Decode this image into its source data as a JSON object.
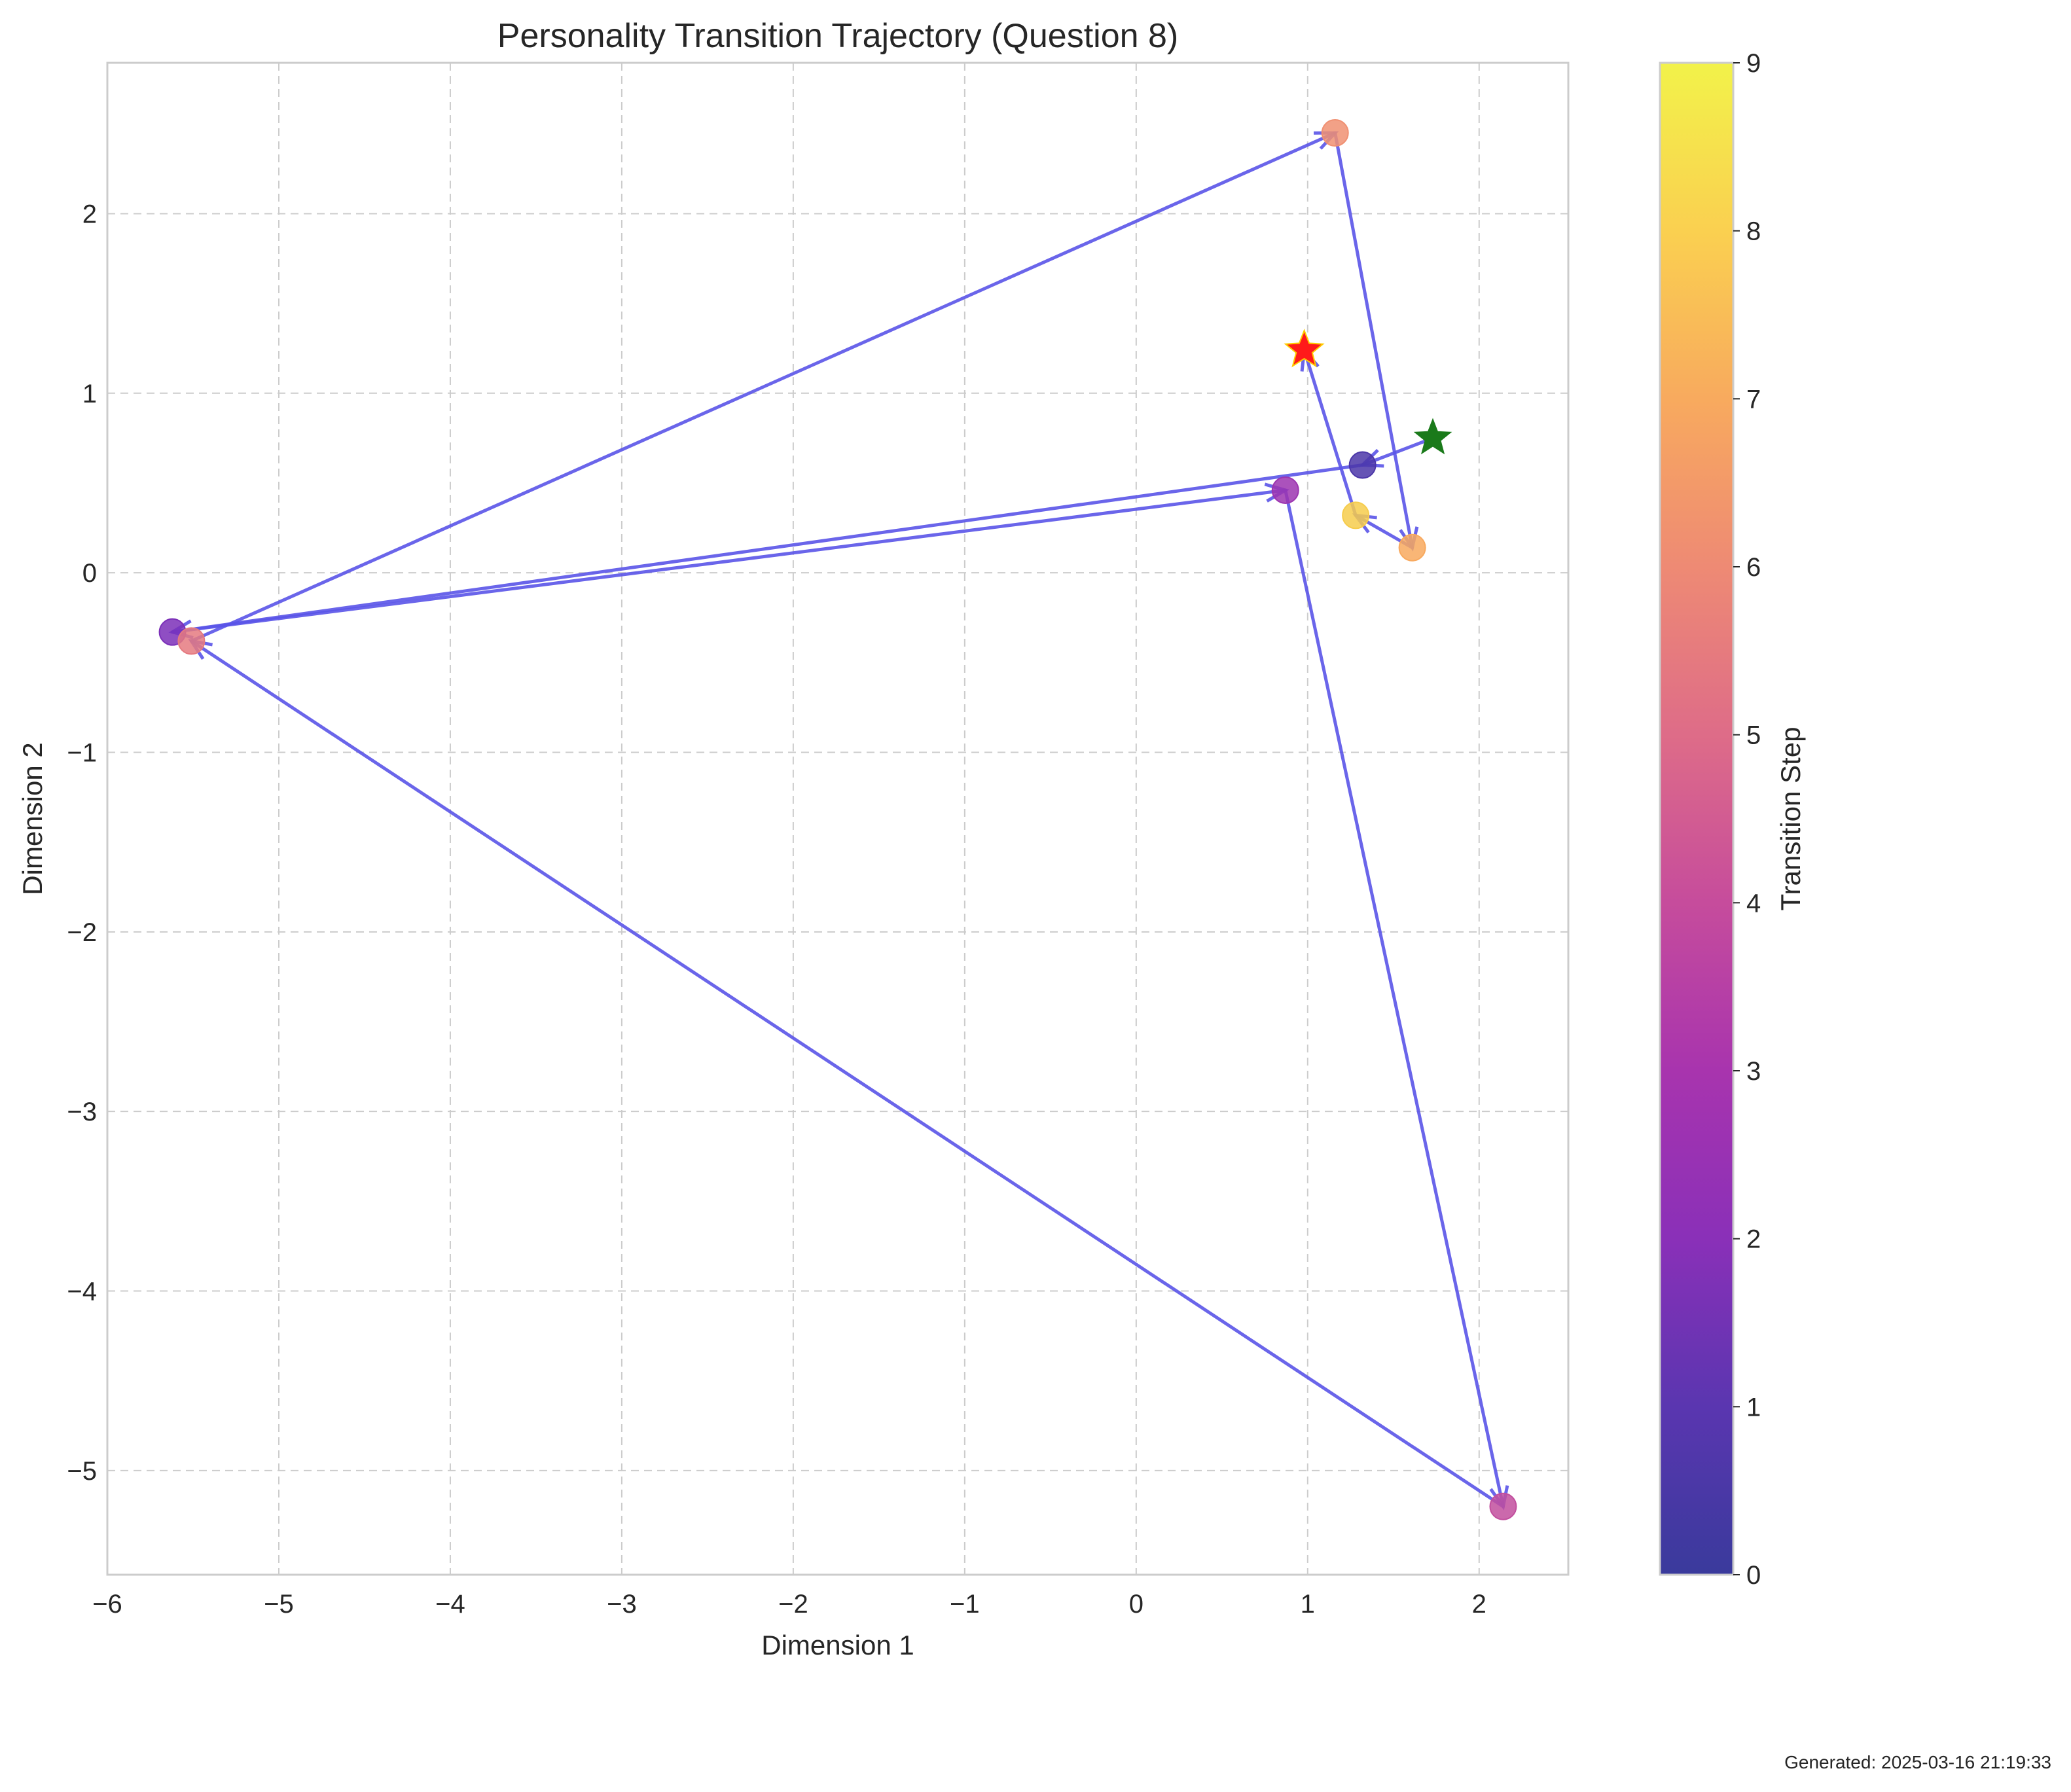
{
  "chart_data": {
    "type": "scatter",
    "title": "Personality Transition Trajectory (Question 8)",
    "xlabel": "Dimension 1",
    "ylabel": "Dimension 2",
    "xlim": [
      -6.0,
      2.52
    ],
    "ylim": [
      -5.58,
      2.84
    ],
    "xticks": [
      -6,
      -5,
      -4,
      -3,
      -2,
      -1,
      0,
      1,
      2
    ],
    "yticks": [
      -5,
      -4,
      -3,
      -2,
      -1,
      0,
      1,
      2
    ],
    "grid": true,
    "line_color": "#5a54e8",
    "points": [
      {
        "step": 0,
        "x": 1.32,
        "y": 0.6,
        "color": "#4b36a8"
      },
      {
        "step": 1,
        "x": -5.62,
        "y": -0.33,
        "color": "#7b2fb8"
      },
      {
        "step": 2,
        "x": 0.87,
        "y": 0.46,
        "color": "#9c34b0"
      },
      {
        "step": 3,
        "x": 2.14,
        "y": -5.2,
        "color": "#c24f9e"
      },
      {
        "step": 4,
        "x": -5.51,
        "y": -0.38,
        "color": "#e57a80"
      },
      {
        "step": 5,
        "x": 1.16,
        "y": 2.45,
        "color": "#f09072"
      },
      {
        "step": 6,
        "x": 1.61,
        "y": 0.14,
        "color": "#f8a95e"
      },
      {
        "step": 7,
        "x": 1.28,
        "y": 0.32,
        "color": "#f6cc4c"
      }
    ],
    "start_marker": {
      "x": 1.73,
      "y": 0.75,
      "color": "#1a7a1a"
    },
    "end_marker": {
      "x": 0.98,
      "y": 1.24,
      "color": "#ff1a1a"
    },
    "colorbar": {
      "label": "Transition Step",
      "min": 0,
      "max": 9,
      "ticks": [
        0,
        1,
        2,
        3,
        4,
        5,
        6,
        7,
        8,
        9
      ],
      "colors": [
        "#3a3a9c",
        "#5a36b0",
        "#8a30b8",
        "#a834ae",
        "#c64c9c",
        "#de6c88",
        "#ee8a74",
        "#f8aa5e",
        "#fad050",
        "#f2f24a"
      ]
    }
  },
  "footer": {
    "generated": "Generated: 2025-03-16 21:19:33"
  }
}
